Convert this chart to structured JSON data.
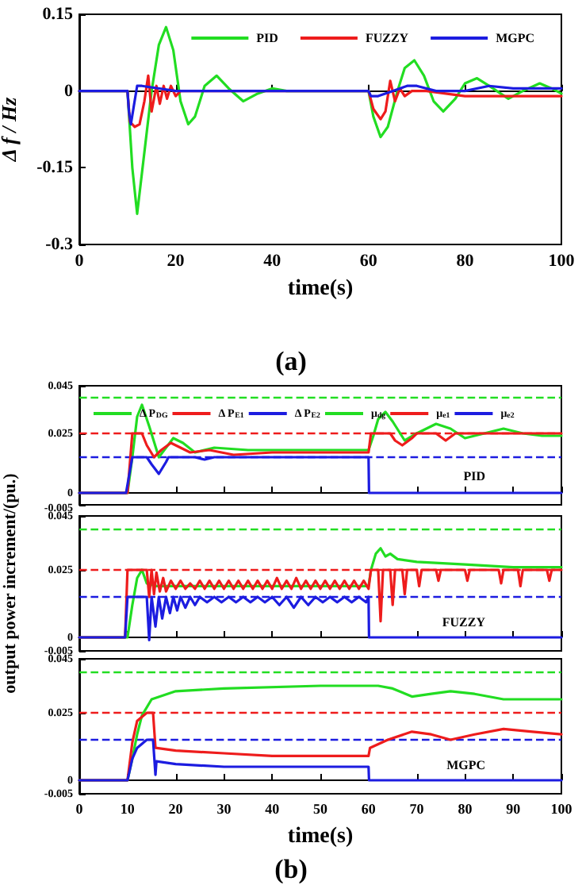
{
  "chart_data": [
    {
      "type": "line",
      "xlabel": "time(s)",
      "ylabel": "Δ f / Hz",
      "xlim": [
        0,
        100
      ],
      "xticks": [
        0,
        20,
        40,
        60,
        80,
        100
      ],
      "ylim": [
        -0.3,
        0.15
      ],
      "yticks": [
        -0.3,
        -0.15,
        0,
        0.15
      ],
      "legend": "top right",
      "marker": "none",
      "annotations": [
        "(a)"
      ],
      "series": [
        {
          "name": "PID",
          "color": "#22dd22",
          "x": [
            0,
            10,
            11,
            12,
            13,
            15,
            16.5,
            18,
            19.5,
            21,
            22.6,
            24,
            26,
            28.5,
            31,
            34,
            37,
            40,
            43,
            46,
            50,
            60,
            61,
            62.5,
            64,
            66,
            67.5,
            69.5,
            71.5,
            73.5,
            75.5,
            78,
            80,
            82.5,
            85,
            89,
            92,
            95.5,
            98,
            100
          ],
          "values": [
            0,
            0,
            -0.15,
            -0.24,
            -0.16,
            0,
            0.09,
            0.125,
            0.08,
            -0.02,
            -0.065,
            -0.05,
            0.01,
            0.03,
            0.005,
            -0.02,
            -0.005,
            0.005,
            0,
            0,
            0,
            0,
            -0.05,
            -0.09,
            -0.07,
            0,
            0.045,
            0.06,
            0.03,
            -0.02,
            -0.04,
            -0.015,
            0.015,
            0.025,
            0.01,
            -0.015,
            0,
            0.015,
            0.005,
            -0.005
          ]
        },
        {
          "name": "FUZZY",
          "color": "#ee1c1c",
          "x": [
            0,
            10,
            10.5,
            11.5,
            12.5,
            13.5,
            14.3,
            15,
            16,
            16.7,
            17.5,
            18.2,
            19,
            20,
            21,
            25,
            30,
            40,
            50,
            60,
            61,
            62.5,
            63.5,
            64.5,
            65.5,
            66.5,
            67.5,
            69,
            72,
            80,
            90,
            100
          ],
          "values": [
            0,
            0,
            -0.06,
            -0.07,
            -0.065,
            -0.02,
            0.03,
            -0.04,
            0.01,
            -0.025,
            0.01,
            -0.015,
            0.01,
            -0.01,
            0,
            0,
            0,
            0,
            0,
            0,
            -0.035,
            -0.055,
            -0.04,
            0.02,
            -0.02,
            0.005,
            -0.01,
            0,
            0,
            -0.01,
            -0.01,
            -0.01
          ]
        },
        {
          "name": "MGPC",
          "color": "#1c1ce0",
          "x": [
            0,
            10,
            10.3,
            10.7,
            11.3,
            12,
            13,
            20,
            30,
            40,
            50,
            60,
            60.5,
            62,
            65,
            68,
            70,
            74,
            77,
            80,
            85,
            90,
            95,
            100
          ],
          "values": [
            0,
            0,
            -0.04,
            -0.065,
            -0.03,
            0.01,
            0.01,
            0,
            0,
            0,
            0,
            0,
            -0.01,
            -0.01,
            0,
            0.01,
            0.01,
            0,
            0,
            0,
            0.01,
            0.005,
            0.005,
            0.005
          ]
        }
      ]
    },
    {
      "type": "line",
      "xlim": [
        0,
        100
      ],
      "xticks": [
        0,
        10,
        20,
        30,
        40,
        50,
        60,
        70,
        80,
        90,
        100
      ],
      "ylim": [
        -0.005,
        0.045
      ],
      "yticks": [
        -0.005,
        0,
        0.025,
        0.045
      ],
      "tick_labels": "y",
      "legend": "top",
      "marker": "none",
      "annotations": [
        "PID"
      ],
      "ref_lines": [
        {
          "axis": "y",
          "value": 0.04,
          "label": "μ$_{dg}$",
          "color": "#22dd22",
          "line_style": "dashed"
        },
        {
          "axis": "y",
          "value": 0.025,
          "label": "μ$_{e1}$",
          "color": "#ee1c1c",
          "line_style": "dashed"
        },
        {
          "axis": "y",
          "value": 0.015,
          "label": "μ$_{e2}$",
          "color": "#1c1ce0",
          "line_style": "dashed"
        }
      ],
      "series": [
        {
          "name": "Δ P$_{DG}$",
          "color": "#22dd22",
          "x": [
            0,
            10,
            11,
            12,
            13,
            14.5,
            16.5,
            18,
            19.5,
            21.5,
            24,
            28,
            35,
            45,
            60,
            61,
            62,
            63.5,
            65,
            67.5,
            70,
            74,
            77,
            80,
            84,
            88,
            92,
            96,
            100
          ],
          "values": [
            0,
            0,
            0.015,
            0.032,
            0.037,
            0.028,
            0.015,
            0.019,
            0.023,
            0.021,
            0.017,
            0.019,
            0.018,
            0.018,
            0.018,
            0.024,
            0.031,
            0.034,
            0.03,
            0.022,
            0.025,
            0.029,
            0.027,
            0.023,
            0.025,
            0.027,
            0.025,
            0.024,
            0.024
          ]
        },
        {
          "name": "Δ P$_{E1}$",
          "color": "#ee1c1c",
          "x": [
            0,
            10,
            11,
            13,
            14,
            15.5,
            17,
            19,
            21,
            23,
            27,
            32,
            40,
            50,
            60,
            60.5,
            64.5,
            65.5,
            67,
            69,
            70,
            74,
            76,
            78,
            100
          ],
          "values": [
            0,
            0,
            0.025,
            0.025,
            0.02,
            0.015,
            0.018,
            0.021,
            0.019,
            0.017,
            0.018,
            0.016,
            0.017,
            0.017,
            0.017,
            0.025,
            0.025,
            0.022,
            0.02,
            0.023,
            0.025,
            0.025,
            0.022,
            0.025,
            0.025
          ]
        },
        {
          "name": "Δ P$_{E2}$",
          "color": "#1c1ce0",
          "x": [
            0,
            9.7,
            11,
            14,
            15,
            16.5,
            18,
            18.5,
            24,
            26,
            28,
            60,
            60.1,
            100
          ],
          "values": [
            0,
            0,
            0.015,
            0.015,
            0.012,
            0.008,
            0.013,
            0.015,
            0.015,
            0.014,
            0.015,
            0.015,
            0,
            0
          ]
        }
      ]
    },
    {
      "type": "line",
      "ylabel": "output power increment/(pu.)",
      "xlim": [
        0,
        100
      ],
      "xticks": [
        0,
        10,
        20,
        30,
        40,
        50,
        60,
        70,
        80,
        90,
        100
      ],
      "ylim": [
        -0.005,
        0.045
      ],
      "yticks": [
        -0.005,
        0,
        0.025,
        0.045
      ],
      "tick_labels": "y",
      "marker": "none",
      "annotations": [
        "FUZZY"
      ],
      "ref_lines": [
        {
          "axis": "y",
          "value": 0.04,
          "color": "#22dd22",
          "line_style": "dashed"
        },
        {
          "axis": "y",
          "value": 0.025,
          "color": "#ee1c1c",
          "line_style": "dashed"
        },
        {
          "axis": "y",
          "value": 0.015,
          "color": "#1c1ce0",
          "line_style": "dashed"
        }
      ],
      "series": [
        {
          "color": "#22dd22",
          "x": [
            0,
            10,
            11,
            12,
            13,
            14,
            16,
            30,
            60,
            60.5,
            61.5,
            62.5,
            63.5,
            64.5,
            66,
            70,
            80,
            90,
            100
          ],
          "values": [
            0,
            0,
            0.012,
            0.022,
            0.025,
            0.02,
            0.019,
            0.019,
            0.019,
            0.025,
            0.031,
            0.033,
            0.03,
            0.031,
            0.029,
            0.028,
            0.027,
            0.026,
            0.026
          ]
        },
        {
          "color": "#ee1c1c",
          "x": [
            0,
            9.5,
            10,
            13,
            14,
            14.5,
            15,
            15.5,
            16,
            16.7,
            17.4,
            18,
            19,
            20,
            21,
            22,
            23,
            24,
            25,
            26,
            27,
            28,
            29,
            30,
            31,
            32,
            33,
            34,
            35,
            36,
            37,
            38,
            39,
            40,
            41,
            42,
            43,
            44,
            45,
            46,
            47,
            48,
            49,
            50,
            51,
            52,
            53,
            54,
            55,
            56,
            57,
            58,
            59,
            60,
            60.5,
            62,
            62.5,
            63,
            64.5,
            65,
            65.5,
            67,
            67.5,
            68,
            70,
            70.5,
            71,
            74,
            74.5,
            75,
            80,
            80.5,
            81,
            87,
            87.5,
            88,
            91,
            91.5,
            92,
            97,
            97.5,
            98,
            100
          ],
          "values": [
            0,
            0,
            0.025,
            0.025,
            0.025,
            0.015,
            0.025,
            0.016,
            0.024,
            0.017,
            0.022,
            0.017,
            0.021,
            0.018,
            0.021,
            0.018,
            0.02,
            0.018,
            0.021,
            0.018,
            0.021,
            0.018,
            0.021,
            0.018,
            0.021,
            0.018,
            0.021,
            0.018,
            0.021,
            0.018,
            0.021,
            0.018,
            0.021,
            0.018,
            0.022,
            0.018,
            0.021,
            0.018,
            0.022,
            0.018,
            0.021,
            0.018,
            0.021,
            0.018,
            0.021,
            0.018,
            0.021,
            0.018,
            0.021,
            0.018,
            0.021,
            0.018,
            0.021,
            0.018,
            0.025,
            0.025,
            0.006,
            0.025,
            0.025,
            0.012,
            0.025,
            0.025,
            0.016,
            0.025,
            0.025,
            0.019,
            0.025,
            0.025,
            0.021,
            0.025,
            0.025,
            0.021,
            0.025,
            0.025,
            0.02,
            0.025,
            0.025,
            0.019,
            0.025,
            0.025,
            0.021,
            0.025,
            0.025
          ]
        },
        {
          "color": "#1c1ce0",
          "x": [
            0,
            9.5,
            10,
            14,
            14.5,
            15,
            15.8,
            16.5,
            17.2,
            18,
            18.8,
            19.5,
            20.3,
            21,
            22,
            23,
            24,
            25,
            26.5,
            28,
            29.5,
            31,
            32.5,
            34,
            35.5,
            37,
            38.5,
            40,
            41.5,
            43,
            44.5,
            46,
            47.5,
            49,
            50.5,
            52,
            53.5,
            55,
            56.5,
            58,
            59.5,
            60,
            60.1,
            100
          ],
          "values": [
            0,
            0,
            0.015,
            0.015,
            -0.001,
            0.015,
            0.004,
            0.015,
            0.007,
            0.015,
            0.009,
            0.015,
            0.01,
            0.015,
            0.011,
            0.015,
            0.012,
            0.015,
            0.013,
            0.015,
            0.013,
            0.015,
            0.013,
            0.015,
            0.013,
            0.015,
            0.013,
            0.015,
            0.012,
            0.015,
            0.011,
            0.015,
            0.012,
            0.015,
            0.013,
            0.015,
            0.013,
            0.015,
            0.013,
            0.015,
            0.013,
            0.015,
            0,
            0
          ]
        }
      ]
    },
    {
      "type": "line",
      "xlabel": "time(s)",
      "xlim": [
        0,
        100
      ],
      "xticks": [
        0,
        10,
        20,
        30,
        40,
        50,
        60,
        70,
        80,
        90,
        100
      ],
      "ylim": [
        -0.005,
        0.045
      ],
      "yticks": [
        -0.005,
        0,
        0.025,
        0.045
      ],
      "marker": "none",
      "annotations": [
        "MGPC",
        "(b)"
      ],
      "ref_lines": [
        {
          "axis": "y",
          "value": 0.04,
          "color": "#22dd22",
          "line_style": "dashed"
        },
        {
          "axis": "y",
          "value": 0.025,
          "color": "#ee1c1c",
          "line_style": "dashed"
        },
        {
          "axis": "y",
          "value": 0.015,
          "color": "#1c1ce0",
          "line_style": "dashed"
        }
      ],
      "series": [
        {
          "color": "#22dd22",
          "x": [
            0,
            10,
            11,
            12,
            13,
            15,
            20,
            30,
            50,
            62,
            65,
            69,
            73,
            77,
            82,
            88,
            96,
            100
          ],
          "values": [
            0,
            0,
            0.008,
            0.017,
            0.024,
            0.03,
            0.033,
            0.034,
            0.035,
            0.035,
            0.034,
            0.031,
            0.032,
            0.033,
            0.032,
            0.03,
            0.03,
            0.03
          ]
        },
        {
          "color": "#ee1c1c",
          "x": [
            0,
            10,
            11,
            12,
            14,
            15.3,
            15.8,
            20,
            30,
            40,
            60,
            60.3,
            64,
            69,
            73,
            77,
            82,
            88,
            94,
            100
          ],
          "values": [
            0,
            0,
            0.014,
            0.022,
            0.025,
            0.025,
            0.012,
            0.011,
            0.01,
            0.009,
            0.009,
            0.012,
            0.015,
            0.018,
            0.017,
            0.015,
            0.017,
            0.019,
            0.018,
            0.017
          ]
        },
        {
          "color": "#1c1ce0",
          "x": [
            0,
            10,
            11,
            12,
            14,
            15.3,
            15.8,
            16,
            20,
            30,
            40,
            60,
            60.1,
            100
          ],
          "values": [
            0,
            0,
            0.008,
            0.012,
            0.015,
            0.015,
            0.002,
            0.007,
            0.006,
            0.005,
            0.005,
            0.005,
            0,
            0
          ]
        }
      ]
    }
  ]
}
